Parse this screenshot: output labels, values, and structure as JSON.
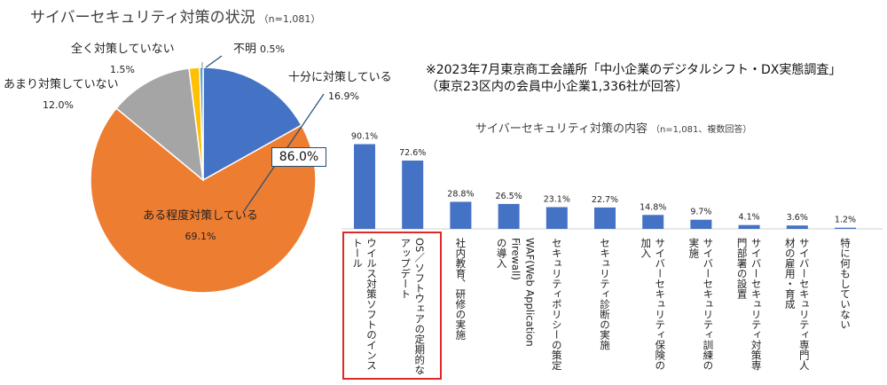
{
  "pie": {
    "title": "サイバーセキュリティ対策の状況",
    "title_note": "（n=1,081）",
    "callout_total": "86.0%",
    "colors": [
      "#4472c4",
      "#ed7d31",
      "#a5a5a5",
      "#ffc000",
      "#5b9bd5"
    ],
    "slices": [
      {
        "label": "十分に対策している",
        "value": 16.9,
        "value_text": "16.9%"
      },
      {
        "label": "ある程度対策している",
        "value": 69.1,
        "value_text": "69.1%"
      },
      {
        "label": "あまり対策していない",
        "value": 12.0,
        "value_text": "12.0%"
      },
      {
        "label": "全く対策していない",
        "value": 1.5,
        "value_text": "1.5%"
      },
      {
        "label": "不明",
        "value": 0.5,
        "value_text": "0.5%"
      }
    ]
  },
  "note": {
    "line1": "※2023年7月東京商工会議所「中小企業のデジタルシフト・DX実態調査」",
    "line2": "（東京23区内の会員中小企業1,336社が回答）"
  },
  "bar": {
    "title": "サイバーセキュリティ対策の内容",
    "title_note": "（n=1,081、複数回答）",
    "color": "#4472c4",
    "ylim": [
      0,
      100
    ]
  },
  "chart_data": {
    "type": "bar",
    "title": "サイバーセキュリティ対策の内容",
    "ylim": [
      0,
      100
    ],
    "categories": [
      "ウイルス対策ソフトのインス\nトール",
      "OS／ソフトウェアの定期的な\nアップデート",
      "社内教育、研修の実施",
      "WAF(Web Application Firewall)\nの導入",
      "セキュリティポリシーの策定",
      "セキュリティ診断の実施",
      "サイバーセキュリティ保険の\n加入",
      "サイバーセキュリティ訓練の\n実施",
      "サイバーセキュリティ対策専\n門部署の設置",
      "サイバーセキュリティ専門人\n材の雇用・育成",
      "特に何もしていない"
    ],
    "values": [
      90.1,
      72.6,
      28.8,
      26.5,
      23.1,
      22.7,
      14.8,
      9.7,
      4.1,
      3.6,
      1.2
    ],
    "value_labels": [
      "90.1%",
      "72.6%",
      "28.8%",
      "26.5%",
      "23.1%",
      "22.7%",
      "14.8%",
      "9.7%",
      "4.1%",
      "3.6%",
      "1.2%"
    ]
  }
}
